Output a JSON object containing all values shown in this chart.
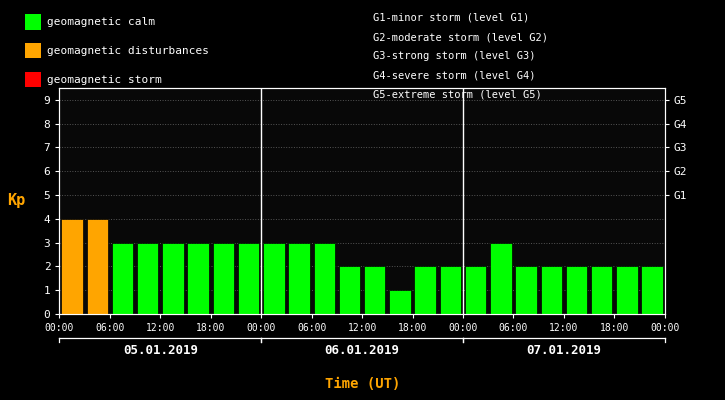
{
  "background_color": "#000000",
  "bar_data": [
    {
      "day": 0,
      "slot": 0,
      "value": 4,
      "color": "#FFA500"
    },
    {
      "day": 0,
      "slot": 1,
      "value": 4,
      "color": "#FFA500"
    },
    {
      "day": 0,
      "slot": 2,
      "value": 3,
      "color": "#00FF00"
    },
    {
      "day": 0,
      "slot": 3,
      "value": 3,
      "color": "#00FF00"
    },
    {
      "day": 0,
      "slot": 4,
      "value": 3,
      "color": "#00FF00"
    },
    {
      "day": 0,
      "slot": 5,
      "value": 3,
      "color": "#00FF00"
    },
    {
      "day": 0,
      "slot": 6,
      "value": 3,
      "color": "#00FF00"
    },
    {
      "day": 0,
      "slot": 7,
      "value": 3,
      "color": "#00FF00"
    },
    {
      "day": 1,
      "slot": 0,
      "value": 3,
      "color": "#00FF00"
    },
    {
      "day": 1,
      "slot": 1,
      "value": 3,
      "color": "#00FF00"
    },
    {
      "day": 1,
      "slot": 2,
      "value": 3,
      "color": "#00FF00"
    },
    {
      "day": 1,
      "slot": 3,
      "value": 2,
      "color": "#00FF00"
    },
    {
      "day": 1,
      "slot": 4,
      "value": 2,
      "color": "#00FF00"
    },
    {
      "day": 1,
      "slot": 5,
      "value": 1,
      "color": "#00FF00"
    },
    {
      "day": 1,
      "slot": 6,
      "value": 2,
      "color": "#00FF00"
    },
    {
      "day": 1,
      "slot": 7,
      "value": 2,
      "color": "#00FF00"
    },
    {
      "day": 2,
      "slot": 0,
      "value": 2,
      "color": "#00FF00"
    },
    {
      "day": 2,
      "slot": 1,
      "value": 3,
      "color": "#00FF00"
    },
    {
      "day": 2,
      "slot": 2,
      "value": 2,
      "color": "#00FF00"
    },
    {
      "day": 2,
      "slot": 3,
      "value": 2,
      "color": "#00FF00"
    },
    {
      "day": 2,
      "slot": 4,
      "value": 2,
      "color": "#00FF00"
    },
    {
      "day": 2,
      "slot": 5,
      "value": 2,
      "color": "#00FF00"
    },
    {
      "day": 2,
      "slot": 6,
      "value": 2,
      "color": "#00FF00"
    },
    {
      "day": 2,
      "slot": 7,
      "value": 2,
      "color": "#00FF00"
    }
  ],
  "day_labels": [
    "05.01.2019",
    "06.01.2019",
    "07.01.2019"
  ],
  "time_ticks": [
    "00:00",
    "06:00",
    "12:00",
    "18:00",
    "00:00",
    "06:00",
    "12:00",
    "18:00",
    "00:00",
    "06:00",
    "12:00",
    "18:00",
    "00:00"
  ],
  "ylabel_left": "Kp",
  "ylabel_right_labels": [
    "G5",
    "G4",
    "G3",
    "G2",
    "G1"
  ],
  "ylabel_right_ypos": [
    9,
    8,
    7,
    6,
    5
  ],
  "ylim": [
    0,
    9.5
  ],
  "yticks": [
    0,
    1,
    2,
    3,
    4,
    5,
    6,
    7,
    8,
    9
  ],
  "xlabel": "Time (UT)",
  "legend_items": [
    {
      "label": "geomagnetic calm",
      "color": "#00FF00"
    },
    {
      "label": "geomagnetic disturbances",
      "color": "#FFA500"
    },
    {
      "label": "geomagnetic storm",
      "color": "#FF0000"
    }
  ],
  "right_text": [
    "G1-minor storm (level G1)",
    "G2-moderate storm (level G2)",
    "G3-strong storm (level G3)",
    "G4-severe storm (level G4)",
    "G5-extreme storm (level G5)"
  ],
  "text_color": "#FFFFFF",
  "axis_color": "#FFFFFF",
  "grid_color": "#555555",
  "kp_label_color": "#FFA500",
  "xlabel_color": "#FFA500",
  "slots_per_day": 8,
  "bar_width": 0.85
}
